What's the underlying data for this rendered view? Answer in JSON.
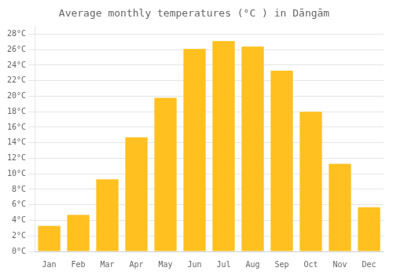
{
  "chart_data": {
    "type": "bar",
    "title": "Average monthly temperatures (°C ) in Dāngām",
    "categories": [
      "Jan",
      "Feb",
      "Mar",
      "Apr",
      "May",
      "Jun",
      "Jul",
      "Aug",
      "Sep",
      "Oct",
      "Nov",
      "Dec"
    ],
    "values": [
      3.3,
      4.7,
      9.3,
      14.7,
      19.8,
      26.1,
      27.1,
      26.4,
      23.3,
      18.0,
      11.3,
      5.7
    ],
    "color": "#FFC020",
    "ylim": [
      0,
      29
    ],
    "yticks": [
      {
        "value": 0,
        "label": "0°C"
      },
      {
        "value": 2,
        "label": "2°C"
      },
      {
        "value": 4,
        "label": "4°C"
      },
      {
        "value": 6,
        "label": "6°C"
      },
      {
        "value": 8,
        "label": "8°C"
      },
      {
        "value": 10,
        "label": "10°C"
      },
      {
        "value": 12,
        "label": "12°C"
      },
      {
        "value": 14,
        "label": "14°C"
      },
      {
        "value": 16,
        "label": "16°C"
      },
      {
        "value": 18,
        "label": "18°C"
      },
      {
        "value": 20,
        "label": "20°C"
      },
      {
        "value": 22,
        "label": "22°C"
      },
      {
        "value": 24,
        "label": "24°C"
      },
      {
        "value": 26,
        "label": "26°C"
      },
      {
        "value": 28,
        "label": "28°C"
      }
    ],
    "grid": true
  }
}
